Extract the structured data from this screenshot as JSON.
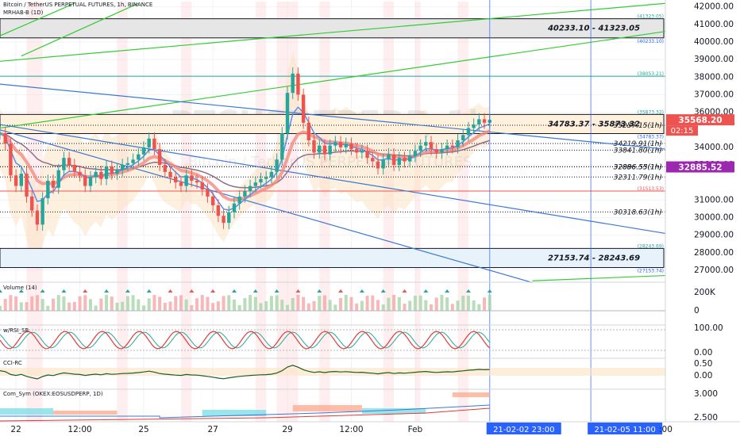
{
  "header": {
    "symbol_line": "Bitcoin / TetherUS PERPETUAL FUTURES, 1h, BINANCE",
    "study_line": "MRHAB-B (1D)",
    "watermark_symbol": "BTCUSDTPERP, 1h",
    "watermark_name": "Bitcoin / TetherUS PERPETUAL FUTURES"
  },
  "chart_data": {
    "type": "line",
    "title": "",
    "xlabel": "",
    "ylabel": "",
    "ylim": [
      26500,
      42300
    ],
    "grid": true,
    "price_ticks": [
      {
        "value": 42000,
        "label": "42000.00"
      },
      {
        "value": 41000,
        "label": "41000.00"
      },
      {
        "value": 40000,
        "label": "40000.00"
      },
      {
        "value": 39000,
        "label": "39000.00"
      },
      {
        "value": 38000,
        "label": "38000.00"
      },
      {
        "value": 37000,
        "label": "37000.00"
      },
      {
        "value": 36000,
        "label": "36000.00"
      },
      {
        "value": 34000,
        "label": "34000.00"
      },
      {
        "value": 33000,
        "label": "33000.00"
      },
      {
        "value": 31000,
        "label": "31000.00"
      },
      {
        "value": 30000,
        "label": "30000.00"
      },
      {
        "value": 29000,
        "label": "29000.00"
      },
      {
        "value": 28000,
        "label": "28000.00"
      },
      {
        "value": 27000,
        "label": "27000.00"
      }
    ],
    "x_ticks": [
      {
        "t": 3,
        "label": "22"
      },
      {
        "t": 15,
        "label": "12:00"
      },
      {
        "t": 27,
        "label": "25"
      },
      {
        "t": 40,
        "label": "27"
      },
      {
        "t": 54,
        "label": "29"
      },
      {
        "t": 66,
        "label": "12:00"
      },
      {
        "t": 78,
        "label": "Feb"
      }
    ],
    "x_range": [
      0,
      125
    ],
    "cursor_labels": [
      {
        "t": 92,
        "label": "21-02-02   23:00"
      },
      {
        "t": 111,
        "label": "21-02-05   11:00"
      }
    ],
    "trailing_tick": ":00",
    "price_badges": [
      {
        "value": 35568.2,
        "label": "35568.20",
        "color": "#ef5350"
      },
      {
        "value": 32885.52,
        "label": "32885.52",
        "color": "#9c27b0"
      }
    ],
    "countdown": "02:15",
    "zones": [
      {
        "low": 40233.1,
        "high": 41323.05,
        "label": "40233.10 - 41323.05",
        "top_tag": "(41323.05)",
        "bottom_tag": "(40233.10)",
        "fill": "#e6e6e6"
      },
      {
        "low": 34783.37,
        "high": 35873.32,
        "label": "34783.37 - 35873.32",
        "top_tag": "(35873.32)",
        "bottom_tag": "(34783.37)",
        "fill": "#fff1dc"
      },
      {
        "low": 27153.74,
        "high": 28243.69,
        "label": "27153.74 - 28243.69",
        "top_tag": "(28243.69)",
        "bottom_tag": "(27153.74)",
        "fill": "#e8f2fb"
      }
    ],
    "levels": [
      {
        "value": 38053.21,
        "tag": "(38053.21)",
        "color": "#26a69a",
        "style": "solid"
      },
      {
        "value": 31513.53,
        "tag": "(31513.53)",
        "color": "#ef5350",
        "style": "solid"
      },
      {
        "value": 35257.15,
        "label": "35257.15(1h)",
        "style": "dotted"
      },
      {
        "value": 34219.91,
        "label": "34219.91(1h)",
        "style": "dotted"
      },
      {
        "value": 33841.8,
        "label": "33841.80(1h)",
        "style": "dotted"
      },
      {
        "value": 32896.55,
        "label": "32896.55(1h)",
        "style": "dotted"
      },
      {
        "value": 32886.53,
        "label": "32886.53(1h)",
        "style": "dotted"
      },
      {
        "value": 32311.79,
        "label": "32311.79(1h)",
        "style": "dotted"
      },
      {
        "value": 30318.63,
        "label": "30318.63(1h)",
        "style": "dotted"
      }
    ],
    "green_trendlines": [
      {
        "t1": 0,
        "p1": 38900,
        "t2": 125,
        "p2": 42200
      },
      {
        "t1": 0,
        "p1": 35100,
        "t2": 125,
        "p2": 40600
      },
      {
        "t1": 4,
        "p1": 39200,
        "t2": 26,
        "p2": 42200
      },
      {
        "t1": 0,
        "p1": 40350,
        "t2": 14,
        "p2": 42200
      },
      {
        "t1": 100,
        "p1": 26400,
        "t2": 125,
        "p2": 26700
      }
    ],
    "blue_trendlines": [
      {
        "t1": 0,
        "p1": 35300,
        "t2": 125,
        "p2": 29100
      },
      {
        "t1": 0,
        "p1": 37600,
        "t2": 125,
        "p2": 33900
      },
      {
        "t1": 0,
        "p1": 35000,
        "t2": 100,
        "p2": 26300
      }
    ],
    "price": [
      {
        "t": 0,
        "v": 34800
      },
      {
        "t": 1,
        "v": 34200
      },
      {
        "t": 2,
        "v": 32400
      },
      {
        "t": 3,
        "v": 31800
      },
      {
        "t": 4,
        "v": 32500
      },
      {
        "t": 5,
        "v": 31200
      },
      {
        "t": 6,
        "v": 30400
      },
      {
        "t": 7,
        "v": 29600
      },
      {
        "t": 8,
        "v": 31100
      },
      {
        "t": 9,
        "v": 32100
      },
      {
        "t": 10,
        "v": 31700
      },
      {
        "t": 11,
        "v": 32700
      },
      {
        "t": 12,
        "v": 33400
      },
      {
        "t": 13,
        "v": 33000
      },
      {
        "t": 14,
        "v": 32600
      },
      {
        "t": 15,
        "v": 32400
      },
      {
        "t": 16,
        "v": 31800
      },
      {
        "t": 17,
        "v": 32300
      },
      {
        "t": 18,
        "v": 32600
      },
      {
        "t": 19,
        "v": 32200
      },
      {
        "t": 20,
        "v": 32900
      },
      {
        "t": 21,
        "v": 32500
      },
      {
        "t": 22,
        "v": 32700
      },
      {
        "t": 23,
        "v": 33000
      },
      {
        "t": 24,
        "v": 33100
      },
      {
        "t": 25,
        "v": 33300
      },
      {
        "t": 26,
        "v": 33600
      },
      {
        "t": 27,
        "v": 34000
      },
      {
        "t": 28,
        "v": 34500
      },
      {
        "t": 29,
        "v": 33900
      },
      {
        "t": 30,
        "v": 33000
      },
      {
        "t": 31,
        "v": 32600
      },
      {
        "t": 32,
        "v": 32300
      },
      {
        "t": 33,
        "v": 32000
      },
      {
        "t": 34,
        "v": 31800
      },
      {
        "t": 35,
        "v": 32400
      },
      {
        "t": 36,
        "v": 32100
      },
      {
        "t": 37,
        "v": 32000
      },
      {
        "t": 38,
        "v": 31600
      },
      {
        "t": 39,
        "v": 31200
      },
      {
        "t": 40,
        "v": 30700
      },
      {
        "t": 41,
        "v": 30100
      },
      {
        "t": 42,
        "v": 29700
      },
      {
        "t": 43,
        "v": 30300
      },
      {
        "t": 44,
        "v": 30800
      },
      {
        "t": 45,
        "v": 31200
      },
      {
        "t": 46,
        "v": 31500
      },
      {
        "t": 47,
        "v": 31800
      },
      {
        "t": 48,
        "v": 32000
      },
      {
        "t": 49,
        "v": 32200
      },
      {
        "t": 50,
        "v": 32300
      },
      {
        "t": 51,
        "v": 32600
      },
      {
        "t": 52,
        "v": 33300
      },
      {
        "t": 53,
        "v": 34800
      },
      {
        "t": 54,
        "v": 37100
      },
      {
        "t": 55,
        "v": 38200
      },
      {
        "t": 56,
        "v": 37000
      },
      {
        "t": 57,
        "v": 35400
      },
      {
        "t": 58,
        "v": 34400
      },
      {
        "t": 59,
        "v": 33700
      },
      {
        "t": 60,
        "v": 34100
      },
      {
        "t": 61,
        "v": 33600
      },
      {
        "t": 62,
        "v": 34100
      },
      {
        "t": 63,
        "v": 34300
      },
      {
        "t": 64,
        "v": 34000
      },
      {
        "t": 65,
        "v": 34200
      },
      {
        "t": 66,
        "v": 33900
      },
      {
        "t": 67,
        "v": 33700
      },
      {
        "t": 68,
        "v": 33800
      },
      {
        "t": 69,
        "v": 33400
      },
      {
        "t": 70,
        "v": 33200
      },
      {
        "t": 71,
        "v": 32800
      },
      {
        "t": 72,
        "v": 33300
      },
      {
        "t": 73,
        "v": 33600
      },
      {
        "t": 74,
        "v": 33000
      },
      {
        "t": 75,
        "v": 33400
      },
      {
        "t": 76,
        "v": 33200
      },
      {
        "t": 77,
        "v": 33500
      },
      {
        "t": 78,
        "v": 33800
      },
      {
        "t": 79,
        "v": 34100
      },
      {
        "t": 80,
        "v": 34300
      },
      {
        "t": 81,
        "v": 33900
      },
      {
        "t": 82,
        "v": 33700
      },
      {
        "t": 83,
        "v": 33900
      },
      {
        "t": 84,
        "v": 34100
      },
      {
        "t": 85,
        "v": 34000
      },
      {
        "t": 86,
        "v": 34400
      },
      {
        "t": 87,
        "v": 34700
      },
      {
        "t": 88,
        "v": 35100
      },
      {
        "t": 89,
        "v": 35300
      },
      {
        "t": 90,
        "v": 35600
      },
      {
        "t": 91,
        "v": 35400
      },
      {
        "t": 92,
        "v": 35568
      }
    ],
    "volume_label": "Volume (14)",
    "volume_ticks": [
      {
        "value": 200000,
        "label": "200K"
      },
      {
        "value": 0,
        "label": "0"
      }
    ],
    "rsi_label": "w/RSI_SB",
    "rsi_ticks": [
      {
        "value": 100,
        "label": "100.00"
      },
      {
        "value": 0,
        "label": "0.00"
      }
    ],
    "cci_label": "CCI-RC",
    "cci_ticks": [
      {
        "value": 0.5,
        "label": "0.50"
      },
      {
        "value": 0,
        "label": "0.00"
      }
    ],
    "comp_label": "Com_Sym (OKEX:EOSUSDPERP, 1D)",
    "comp_ticks": [
      {
        "value": 3.0,
        "label": "3.000"
      },
      {
        "value": 2.5,
        "label": "2.500"
      }
    ]
  }
}
